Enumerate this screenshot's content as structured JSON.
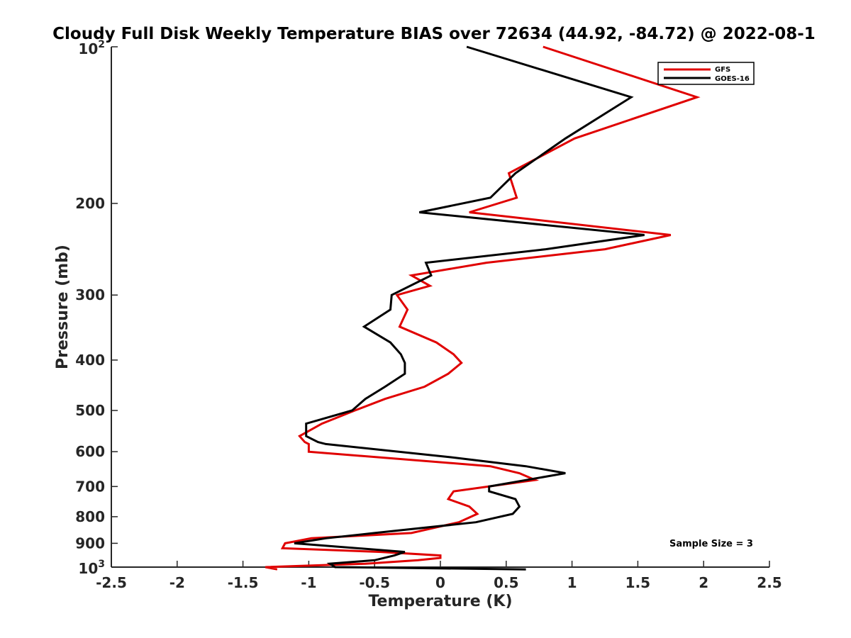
{
  "chart_data": {
    "type": "line",
    "title": "Cloudy Full Disk Weekly Temperature BIAS over 72634 (44.92, -84.72) @ 2022-08-1",
    "xlabel": "Temperature (K)",
    "ylabel": "Pressure (mb)",
    "xlim": [
      -2.5,
      2.5
    ],
    "ylim": [
      100,
      1000
    ],
    "y_scale": "log",
    "y_reversed": true,
    "xticks": [
      "-2.5",
      "-2",
      "-1.5",
      "-1",
      "-0.5",
      "0",
      "0.5",
      "1",
      "1.5",
      "2",
      "2.5"
    ],
    "yticks": [
      {
        "value": 100,
        "base": "10",
        "exp": "2"
      },
      {
        "value": 200,
        "label": "200"
      },
      {
        "value": 300,
        "label": "300"
      },
      {
        "value": 400,
        "label": "400"
      },
      {
        "value": 500,
        "label": "500"
      },
      {
        "value": 600,
        "label": "600"
      },
      {
        "value": 700,
        "label": "700"
      },
      {
        "value": 800,
        "label": "800"
      },
      {
        "value": 900,
        "label": "900"
      },
      {
        "value": 1000,
        "base": "10",
        "exp": "3"
      }
    ],
    "legend_position": "top-right",
    "annotation": "Sample Size = 3",
    "series": [
      {
        "name": "GFS",
        "color": "#e00000",
        "points": [
          [
            0.78,
            100
          ],
          [
            1.95,
            125
          ],
          [
            1.02,
            150
          ],
          [
            0.52,
            175
          ],
          [
            0.58,
            195
          ],
          [
            0.22,
            208
          ],
          [
            1.75,
            230
          ],
          [
            1.25,
            245
          ],
          [
            0.35,
            260
          ],
          [
            -0.22,
            275
          ],
          [
            -0.08,
            288
          ],
          [
            -0.33,
            300
          ],
          [
            -0.25,
            320
          ],
          [
            -0.31,
            345
          ],
          [
            -0.03,
            370
          ],
          [
            0.1,
            390
          ],
          [
            0.16,
            405
          ],
          [
            0.06,
            425
          ],
          [
            -0.12,
            450
          ],
          [
            -0.42,
            475
          ],
          [
            -0.65,
            500
          ],
          [
            -0.9,
            530
          ],
          [
            -1.07,
            560
          ],
          [
            -1.03,
            575
          ],
          [
            -1.0,
            580
          ],
          [
            -1.0,
            600
          ],
          [
            0.38,
            640
          ],
          [
            0.6,
            660
          ],
          [
            0.72,
            680
          ],
          [
            0.1,
            715
          ],
          [
            0.06,
            740
          ],
          [
            0.22,
            765
          ],
          [
            0.28,
            790
          ],
          [
            0.14,
            820
          ],
          [
            -0.22,
            860
          ],
          [
            -0.98,
            880
          ],
          [
            -1.18,
            900
          ],
          [
            -1.2,
            920
          ],
          [
            -0.45,
            935
          ],
          [
            0.0,
            950
          ],
          [
            0.0,
            960
          ],
          [
            -0.17,
            970
          ],
          [
            -0.57,
            985
          ],
          [
            -1.33,
            1000
          ],
          [
            -1.24,
            1010
          ]
        ]
      },
      {
        "name": "GOES-16",
        "color": "#000000",
        "points": [
          [
            0.2,
            100
          ],
          [
            1.45,
            125
          ],
          [
            0.95,
            150
          ],
          [
            0.57,
            175
          ],
          [
            0.38,
            195
          ],
          [
            -0.16,
            208
          ],
          [
            1.55,
            230
          ],
          [
            0.8,
            245
          ],
          [
            -0.11,
            260
          ],
          [
            -0.07,
            275
          ],
          [
            -0.37,
            300
          ],
          [
            -0.38,
            320
          ],
          [
            -0.58,
            345
          ],
          [
            -0.38,
            370
          ],
          [
            -0.3,
            390
          ],
          [
            -0.27,
            405
          ],
          [
            -0.27,
            425
          ],
          [
            -0.42,
            450
          ],
          [
            -0.57,
            475
          ],
          [
            -0.67,
            500
          ],
          [
            -1.02,
            530
          ],
          [
            -1.02,
            560
          ],
          [
            -0.93,
            575
          ],
          [
            -0.87,
            580
          ],
          [
            0.08,
            615
          ],
          [
            0.65,
            640
          ],
          [
            0.95,
            660
          ],
          [
            0.37,
            700
          ],
          [
            0.37,
            715
          ],
          [
            0.57,
            740
          ],
          [
            0.6,
            765
          ],
          [
            0.55,
            790
          ],
          [
            0.27,
            820
          ],
          [
            -0.5,
            860
          ],
          [
            -0.87,
            880
          ],
          [
            -1.11,
            900
          ],
          [
            -0.27,
            935
          ],
          [
            -0.35,
            950
          ],
          [
            -0.5,
            970
          ],
          [
            -0.84,
            985
          ],
          [
            -0.8,
            1000
          ],
          [
            0.65,
            1010
          ]
        ]
      }
    ]
  }
}
